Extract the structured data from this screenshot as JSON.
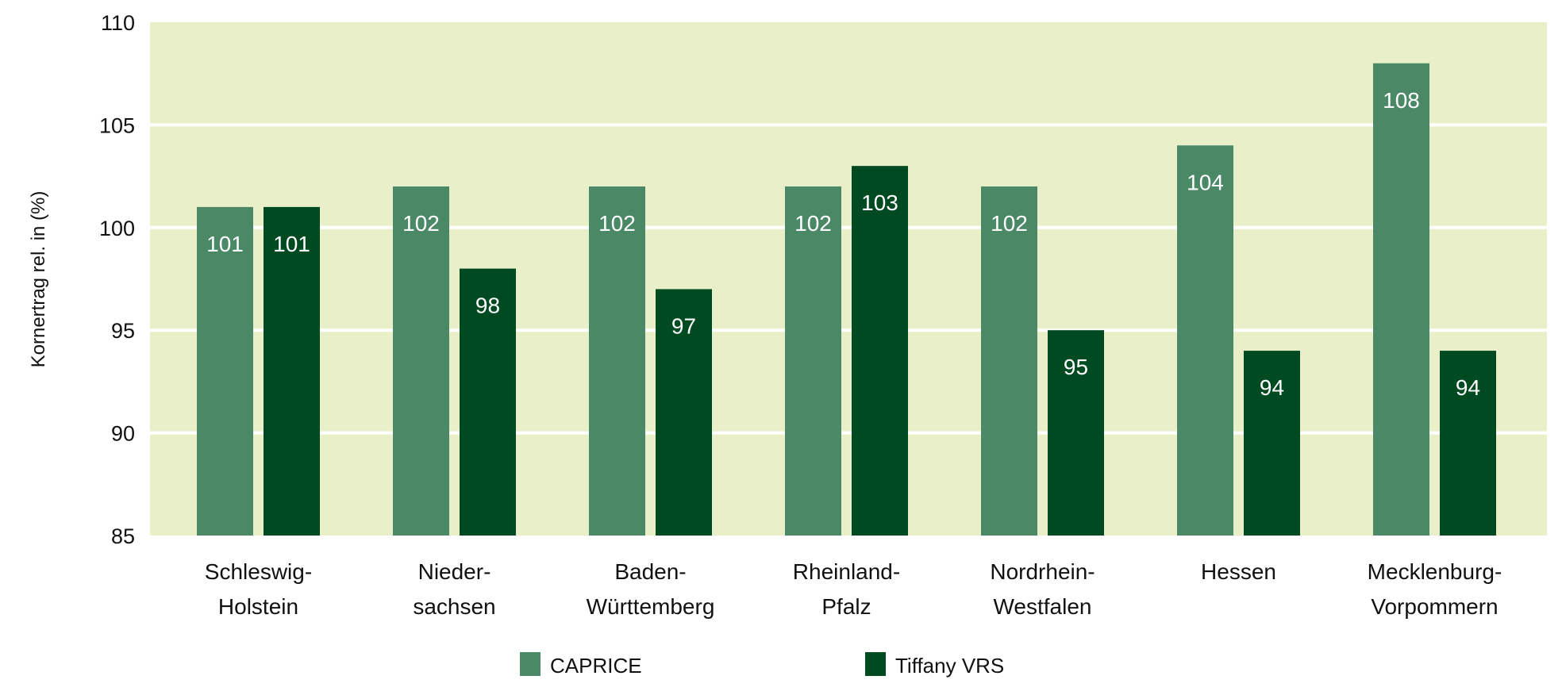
{
  "chart_data": {
    "type": "bar",
    "title": "",
    "xlabel": "",
    "ylabel": "Kornertrag rel. in (%)",
    "ylim": [
      85,
      110
    ],
    "yticks": [
      "85",
      "90",
      "95",
      "100",
      "105",
      "110"
    ],
    "grid": true,
    "legend_position": "bottom-center",
    "categories": [
      [
        "Schleswig-",
        "Holstein"
      ],
      [
        "Nieder-",
        "sachsen"
      ],
      [
        "Baden-",
        "Württemberg"
      ],
      [
        "Rheinland-",
        "Pfalz"
      ],
      [
        "Nordrhein-",
        "Westfalen"
      ],
      [
        "Hessen"
      ],
      [
        "Mecklenburg-",
        "Vorpommern"
      ]
    ],
    "series": [
      {
        "name": "CAPRICE",
        "color": "#4a8866",
        "values": [
          101,
          102,
          102,
          102,
          102,
          104,
          108
        ]
      },
      {
        "name": "Tiffany VRS",
        "color": "#004a22",
        "values": [
          101,
          98,
          97,
          103,
          95,
          94,
          94
        ]
      }
    ],
    "plot_bg": "#e9f0c9"
  }
}
